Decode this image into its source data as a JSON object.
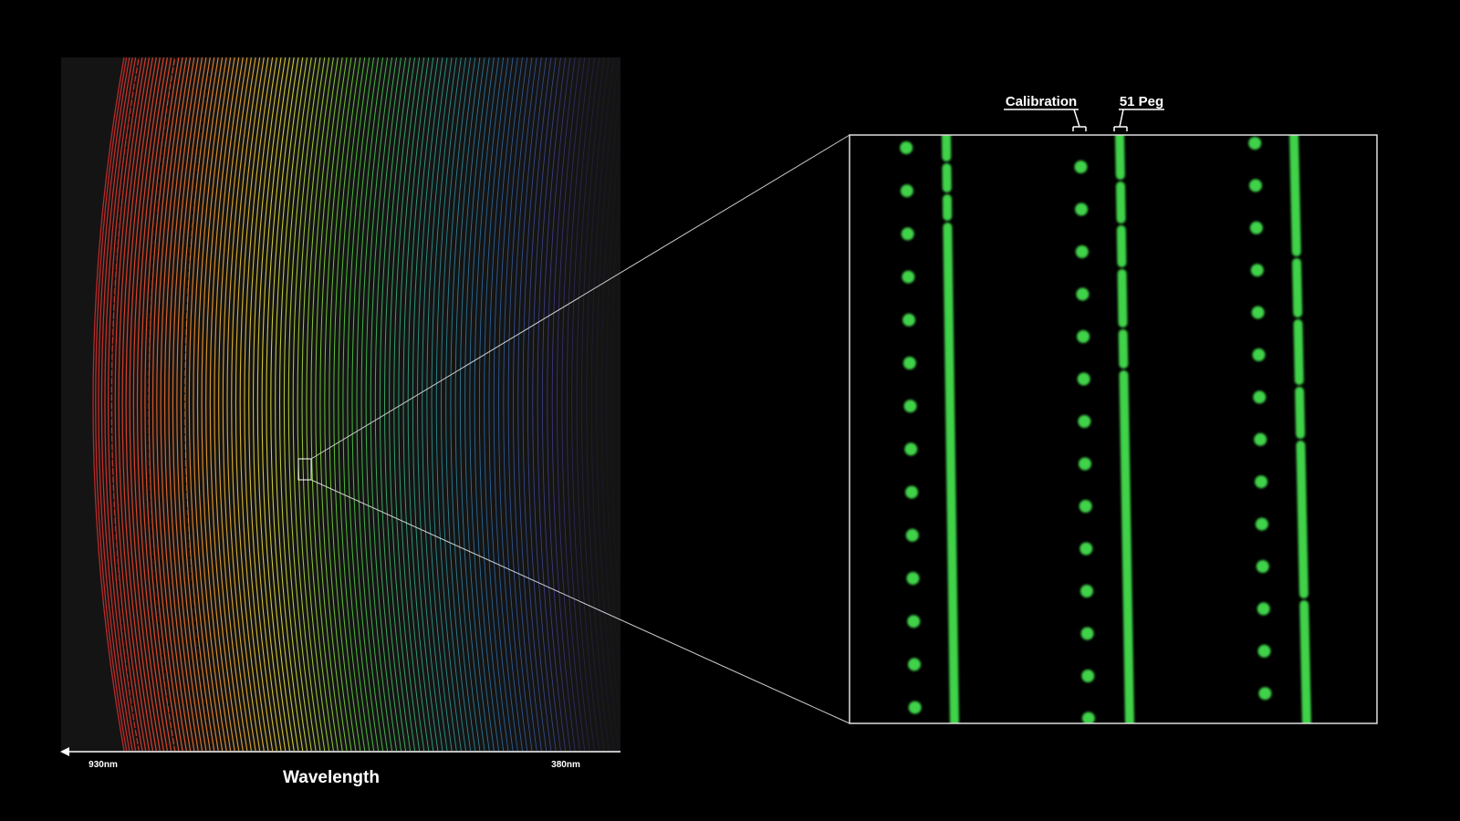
{
  "spectrum": {
    "axis_title": "Wavelength",
    "tick_left": "930nm",
    "tick_right": "380nm"
  },
  "zoom": {
    "label_calibration": "Calibration",
    "label_star": "51 Peg",
    "column_color": "#3fd24a"
  },
  "colors": {
    "background": "#000000",
    "panel": "#141414",
    "frame": "#dddddd"
  }
}
